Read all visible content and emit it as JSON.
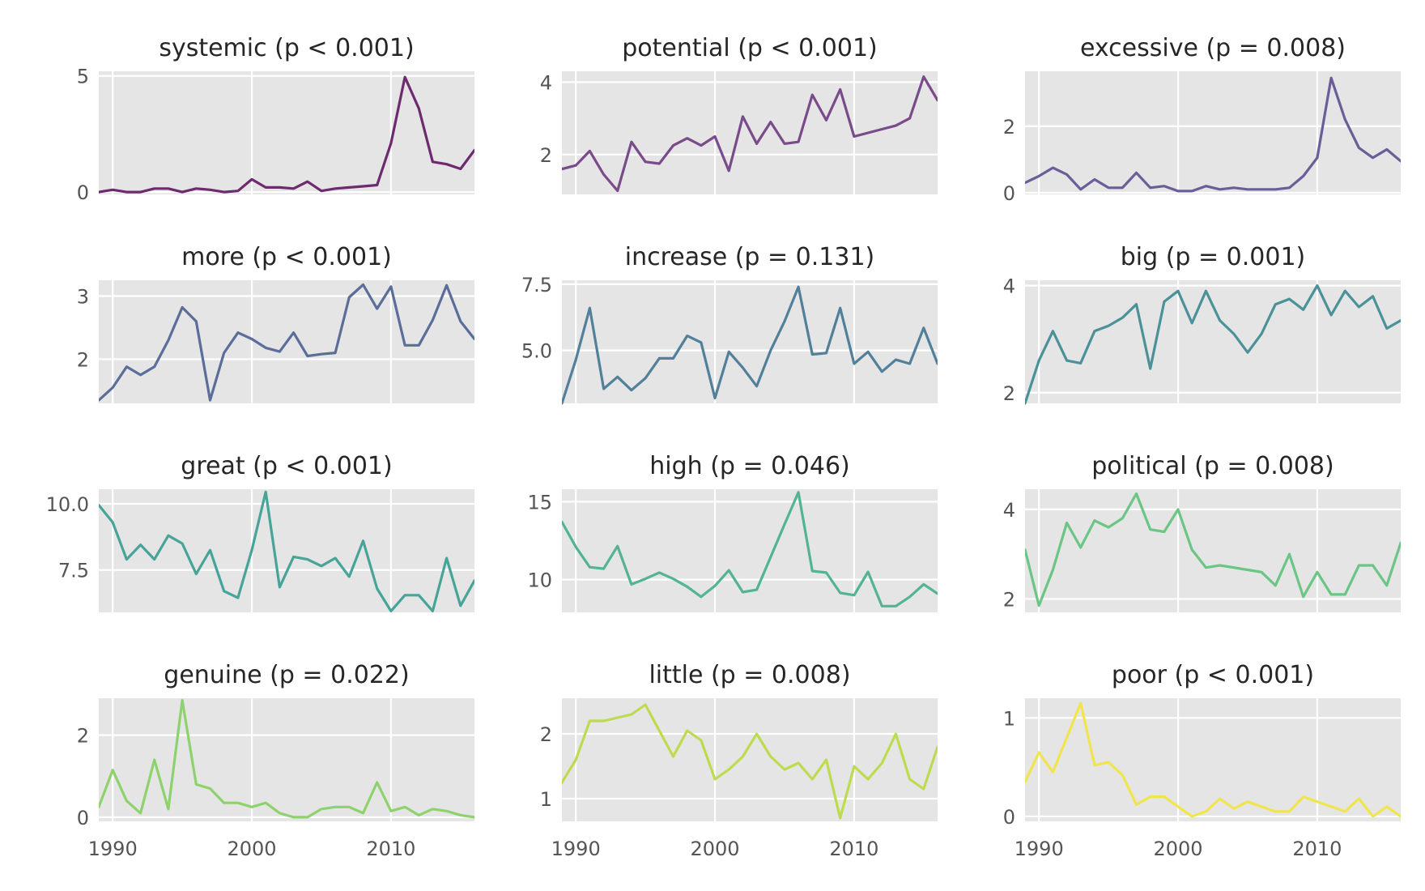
{
  "chart_data": [
    {
      "type": "line",
      "title": "systemic (p < 0.001)",
      "color": "#6e2a6f",
      "xlim": [
        1989,
        2016
      ],
      "ylim": [
        -0.1,
        5.2
      ],
      "yticks": [
        0,
        5
      ],
      "yticklabels": [
        "0",
        "5"
      ],
      "x": [
        1989,
        1990,
        1991,
        1992,
        1993,
        1994,
        1995,
        1996,
        1997,
        1998,
        1999,
        2000,
        2001,
        2002,
        2003,
        2004,
        2005,
        2006,
        2007,
        2008,
        2009,
        2010,
        2011,
        2012,
        2013,
        2014,
        2015,
        2016
      ],
      "y": [
        0.0,
        0.1,
        0.0,
        0.0,
        0.15,
        0.15,
        0.0,
        0.15,
        0.1,
        0.0,
        0.05,
        0.55,
        0.2,
        0.2,
        0.15,
        0.45,
        0.05,
        0.15,
        0.2,
        0.25,
        0.3,
        2.1,
        4.95,
        3.6,
        1.3,
        1.2,
        1.0,
        1.8
      ]
    },
    {
      "type": "line",
      "title": "potential (p < 0.001)",
      "color": "#7a4b8a",
      "xlim": [
        1989,
        2016
      ],
      "ylim": [
        0.9,
        4.3
      ],
      "yticks": [
        2,
        4
      ],
      "yticklabels": [
        "2",
        "4"
      ],
      "x": [
        1989,
        1990,
        1991,
        1992,
        1993,
        1994,
        1995,
        1996,
        1997,
        1998,
        1999,
        2000,
        2001,
        2002,
        2003,
        2004,
        2005,
        2006,
        2007,
        2008,
        2009,
        2010,
        2011,
        2012,
        2013,
        2014,
        2015,
        2016
      ],
      "y": [
        1.6,
        1.7,
        2.1,
        1.45,
        1.0,
        2.35,
        1.8,
        1.75,
        2.25,
        2.45,
        2.25,
        2.5,
        1.55,
        3.05,
        2.3,
        2.9,
        2.3,
        2.35,
        3.65,
        2.95,
        3.8,
        2.5,
        2.6,
        2.7,
        2.8,
        3.0,
        4.15,
        3.5
      ]
    },
    {
      "type": "line",
      "title": "excessive (p = 0.008)",
      "color": "#6b5e98",
      "xlim": [
        1989,
        2016
      ],
      "ylim": [
        -0.05,
        3.65
      ],
      "yticks": [
        0,
        2
      ],
      "yticklabels": [
        "0",
        "2"
      ],
      "x": [
        1989,
        1990,
        1991,
        1992,
        1993,
        1994,
        1995,
        1996,
        1997,
        1998,
        1999,
        2000,
        2001,
        2002,
        2003,
        2004,
        2005,
        2006,
        2007,
        2008,
        2009,
        2010,
        2011,
        2012,
        2013,
        2014,
        2015,
        2016
      ],
      "y": [
        0.3,
        0.5,
        0.75,
        0.55,
        0.1,
        0.4,
        0.15,
        0.15,
        0.6,
        0.15,
        0.2,
        0.05,
        0.05,
        0.2,
        0.1,
        0.15,
        0.1,
        0.1,
        0.1,
        0.15,
        0.5,
        1.05,
        3.45,
        2.2,
        1.35,
        1.05,
        1.3,
        0.95
      ]
    },
    {
      "type": "line",
      "title": "more (p < 0.001)",
      "color": "#5b6e9a",
      "xlim": [
        1989,
        2016
      ],
      "ylim": [
        1.3,
        3.25
      ],
      "yticks": [
        2,
        3
      ],
      "yticklabels": [
        "2",
        "3"
      ],
      "x": [
        1989,
        1990,
        1991,
        1992,
        1993,
        1994,
        1995,
        1996,
        1997,
        1998,
        1999,
        2000,
        2001,
        2002,
        2003,
        2004,
        2005,
        2006,
        2007,
        2008,
        2009,
        2010,
        2011,
        2012,
        2013,
        2014,
        2015,
        2016
      ],
      "y": [
        1.35,
        1.55,
        1.88,
        1.75,
        1.88,
        2.3,
        2.82,
        2.6,
        1.35,
        2.1,
        2.42,
        2.32,
        2.18,
        2.12,
        2.42,
        2.05,
        2.08,
        2.1,
        2.98,
        3.18,
        2.8,
        3.15,
        2.22,
        2.22,
        2.62,
        3.17,
        2.6,
        2.32
      ]
    },
    {
      "type": "line",
      "title": "increase (p = 0.131)",
      "color": "#52809a",
      "xlim": [
        1989,
        2016
      ],
      "ylim": [
        3.0,
        7.65
      ],
      "yticks": [
        5.0,
        7.5
      ],
      "yticklabels": [
        "5.0",
        "7.5"
      ],
      "x": [
        1989,
        1990,
        1991,
        1992,
        1993,
        1994,
        1995,
        1996,
        1997,
        1998,
        1999,
        2000,
        2001,
        2002,
        2003,
        2004,
        2005,
        2006,
        2007,
        2008,
        2009,
        2010,
        2011,
        2012,
        2013,
        2014,
        2015,
        2016
      ],
      "y": [
        3.0,
        4.65,
        6.6,
        3.55,
        4.0,
        3.5,
        3.95,
        4.7,
        4.7,
        5.55,
        5.3,
        3.2,
        4.95,
        4.35,
        3.65,
        5.0,
        6.1,
        7.4,
        4.85,
        4.9,
        6.6,
        4.5,
        4.95,
        4.2,
        4.65,
        4.5,
        5.85,
        4.5
      ]
    },
    {
      "type": "line",
      "title": "big (p = 0.001)",
      "color": "#4a9298",
      "xlim": [
        1989,
        2016
      ],
      "ylim": [
        1.8,
        4.1
      ],
      "yticks": [
        2,
        4
      ],
      "yticklabels": [
        "2",
        "4"
      ],
      "x": [
        1989,
        1990,
        1991,
        1992,
        1993,
        1994,
        1995,
        1996,
        1997,
        1998,
        1999,
        2000,
        2001,
        2002,
        2003,
        2004,
        2005,
        2006,
        2007,
        2008,
        2009,
        2010,
        2011,
        2012,
        2013,
        2014,
        2015,
        2016
      ],
      "y": [
        1.8,
        2.6,
        3.15,
        2.6,
        2.55,
        3.15,
        3.25,
        3.4,
        3.65,
        2.45,
        3.7,
        3.9,
        3.3,
        3.9,
        3.35,
        3.1,
        2.75,
        3.1,
        3.65,
        3.75,
        3.55,
        4.0,
        3.45,
        3.9,
        3.6,
        3.8,
        3.2,
        3.35
      ]
    },
    {
      "type": "line",
      "title": "great (p < 0.001)",
      "color": "#47a499",
      "xlim": [
        1989,
        2016
      ],
      "ylim": [
        5.9,
        10.55
      ],
      "yticks": [
        7.5,
        10.0
      ],
      "yticklabels": [
        "7.5",
        "10.0"
      ],
      "x": [
        1989,
        1990,
        1991,
        1992,
        1993,
        1994,
        1995,
        1996,
        1997,
        1998,
        1999,
        2000,
        2001,
        2002,
        2003,
        2004,
        2005,
        2006,
        2007,
        2008,
        2009,
        2010,
        2011,
        2012,
        2013,
        2014,
        2015,
        2016
      ],
      "y": [
        9.95,
        9.3,
        7.9,
        8.45,
        7.9,
        8.8,
        8.5,
        7.35,
        8.25,
        6.7,
        6.45,
        8.25,
        10.45,
        6.85,
        8.0,
        7.9,
        7.65,
        7.95,
        7.25,
        8.6,
        6.8,
        5.95,
        6.55,
        6.55,
        5.95,
        7.95,
        6.15,
        7.1
      ]
    },
    {
      "type": "line",
      "title": "high (p = 0.046)",
      "color": "#52b492",
      "xlim": [
        1989,
        2016
      ],
      "ylim": [
        7.9,
        15.8
      ],
      "yticks": [
        10,
        15
      ],
      "yticklabels": [
        "10",
        "15"
      ],
      "x": [
        1989,
        1990,
        1991,
        1992,
        1993,
        1994,
        1995,
        1996,
        1997,
        1998,
        1999,
        2000,
        2001,
        2002,
        2003,
        2004,
        2005,
        2006,
        2007,
        2008,
        2009,
        2010,
        2011,
        2012,
        2013,
        2014,
        2015,
        2016
      ],
      "y": [
        13.7,
        12.1,
        10.8,
        10.7,
        12.15,
        9.7,
        10.05,
        10.45,
        10.05,
        9.55,
        8.9,
        9.6,
        10.6,
        9.2,
        9.35,
        11.45,
        13.55,
        15.6,
        10.55,
        10.45,
        9.15,
        9.0,
        10.5,
        8.3,
        8.3,
        8.9,
        9.7,
        9.1
      ]
    },
    {
      "type": "line",
      "title": "political (p = 0.008)",
      "color": "#6bc585",
      "xlim": [
        1989,
        2016
      ],
      "ylim": [
        1.7,
        4.45
      ],
      "yticks": [
        2,
        4
      ],
      "yticklabels": [
        "2",
        "4"
      ],
      "x": [
        1989,
        1990,
        1991,
        1992,
        1993,
        1994,
        1995,
        1996,
        1997,
        1998,
        1999,
        2000,
        2001,
        2002,
        2003,
        2004,
        2005,
        2006,
        2007,
        2008,
        2009,
        2010,
        2011,
        2012,
        2013,
        2014,
        2015,
        2016
      ],
      "y": [
        3.1,
        1.85,
        2.65,
        3.7,
        3.15,
        3.75,
        3.6,
        3.8,
        4.35,
        3.55,
        3.5,
        4.0,
        3.1,
        2.7,
        2.75,
        2.7,
        2.65,
        2.6,
        2.3,
        3.0,
        2.05,
        2.6,
        2.1,
        2.1,
        2.75,
        2.75,
        2.3,
        3.25
      ]
    },
    {
      "type": "line",
      "title": "genuine (p = 0.022)",
      "color": "#8ed26d",
      "xlim": [
        1989,
        2016
      ],
      "ylim": [
        -0.1,
        2.9
      ],
      "yticks": [
        0,
        2
      ],
      "yticklabels": [
        "0",
        "2"
      ],
      "x": [
        1989,
        1990,
        1991,
        1992,
        1993,
        1994,
        1995,
        1996,
        1997,
        1998,
        1999,
        2000,
        2001,
        2002,
        2003,
        2004,
        2005,
        2006,
        2007,
        2008,
        2009,
        2010,
        2011,
        2012,
        2013,
        2014,
        2015,
        2016
      ],
      "y": [
        0.25,
        1.15,
        0.4,
        0.1,
        1.4,
        0.2,
        2.85,
        0.8,
        0.7,
        0.35,
        0.35,
        0.25,
        0.35,
        0.1,
        0.0,
        0.0,
        0.2,
        0.25,
        0.25,
        0.1,
        0.85,
        0.15,
        0.25,
        0.05,
        0.2,
        0.15,
        0.05,
        0.0
      ]
    },
    {
      "type": "line",
      "title": "little (p = 0.008)",
      "color": "#bcdb4f",
      "xlim": [
        1989,
        2016
      ],
      "ylim": [
        0.65,
        2.55
      ],
      "yticks": [
        1,
        2
      ],
      "yticklabels": [
        "1",
        "2"
      ],
      "x": [
        1989,
        1990,
        1991,
        1992,
        1993,
        1994,
        1995,
        1996,
        1997,
        1998,
        1999,
        2000,
        2001,
        2002,
        2003,
        2004,
        2005,
        2006,
        2007,
        2008,
        2009,
        2010,
        2011,
        2012,
        2013,
        2014,
        2015,
        2016
      ],
      "y": [
        1.25,
        1.6,
        2.2,
        2.2,
        2.25,
        2.3,
        2.45,
        2.05,
        1.65,
        2.05,
        1.9,
        1.3,
        1.45,
        1.65,
        2.0,
        1.65,
        1.45,
        1.55,
        1.3,
        1.6,
        0.7,
        1.5,
        1.3,
        1.55,
        2.0,
        1.3,
        1.15,
        1.8
      ]
    },
    {
      "type": "line",
      "title": "poor (p < 0.001)",
      "color": "#f0e54c",
      "xlim": [
        1989,
        2016
      ],
      "ylim": [
        -0.05,
        1.2
      ],
      "yticks": [
        0,
        1
      ],
      "yticklabels": [
        "0",
        "1"
      ],
      "x": [
        1989,
        1990,
        1991,
        1992,
        1993,
        1994,
        1995,
        1996,
        1997,
        1998,
        1999,
        2000,
        2001,
        2002,
        2003,
        2004,
        2005,
        2006,
        2007,
        2008,
        2009,
        2010,
        2011,
        2012,
        2013,
        2014,
        2015,
        2016
      ],
      "y": [
        0.35,
        0.65,
        0.45,
        0.8,
        1.15,
        0.52,
        0.55,
        0.42,
        0.12,
        0.2,
        0.2,
        0.1,
        0.0,
        0.05,
        0.18,
        0.08,
        0.15,
        0.1,
        0.05,
        0.05,
        0.2,
        0.15,
        0.1,
        0.05,
        0.18,
        0.0,
        0.1,
        0.0
      ]
    }
  ],
  "x_axis": {
    "ticks": [
      1990,
      2000,
      2010
    ],
    "ticklabels": [
      "1990",
      "2000",
      "2010"
    ]
  },
  "style": {
    "panel_bg": "#e5e5e5",
    "grid_color": "#ffffff",
    "grid": true
  }
}
